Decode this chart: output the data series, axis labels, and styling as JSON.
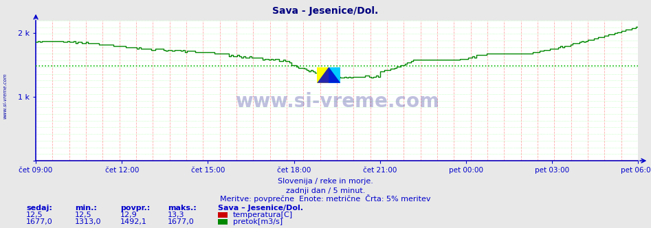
{
  "title": "Sava - Jesenice/Dol.",
  "title_color": "#000080",
  "bg_color": "#e8e8e8",
  "plot_bg_color": "#ffffff",
  "grid_color_v": "#ffaaaa",
  "grid_color_h": "#aaffaa",
  "axis_color": "#0000cc",
  "tick_label_color": "#0000aa",
  "pretok_color": "#008800",
  "temperatura_color": "#cc0000",
  "avg_line_color": "#00bb00",
  "avg_value": 1492.1,
  "footer_line1": "Slovenija / reke in morje.",
  "footer_line2": "zadnji dan / 5 minut.",
  "footer_line3": "Meritve: povprečne  Enote: metrične  Črta: 5% meritev",
  "footer_color": "#0000cc",
  "table_headers": [
    "sedaj:",
    "min.:",
    "povpr.:",
    "maks.:"
  ],
  "row1_vals": [
    "12,5",
    "12,5",
    "12,9",
    "13,3"
  ],
  "row2_vals": [
    "1677,0",
    "1313,0",
    "1492,1",
    "1677,0"
  ],
  "station_label": "Sava – Jesenice/Dol.",
  "legend_temp": "temperatura[C]",
  "legend_pretok": "pretok[m3/s]",
  "table_color": "#0000cc",
  "watermark_text": "www.si-vreme.com",
  "left_label": "www.si-vreme.com",
  "ylim": [
    0,
    2200
  ],
  "ytick_vals": [
    0,
    1000,
    2000
  ],
  "ytick_labels": [
    "",
    "1 k",
    "2 k"
  ],
  "xtick_labels": [
    "čet 09:00",
    "čet 12:00",
    "čet 15:00",
    "čet 18:00",
    "čet 21:00",
    "pet 00:00",
    "pet 03:00",
    "pet 06:00"
  ]
}
